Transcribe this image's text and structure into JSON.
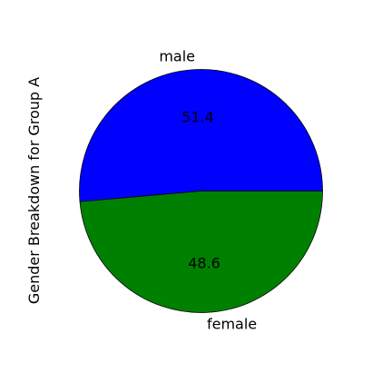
{
  "chart_data": {
    "type": "pie",
    "ylabel": "Gender Breakdown for Group A",
    "slices": [
      {
        "label": "male",
        "value": 51.4,
        "color": "#0000ff"
      },
      {
        "label": "female",
        "value": 48.6,
        "color": "#008000"
      }
    ],
    "start_angle": 0,
    "direction": "counterclockwise",
    "autopct_format": "%.1f"
  }
}
